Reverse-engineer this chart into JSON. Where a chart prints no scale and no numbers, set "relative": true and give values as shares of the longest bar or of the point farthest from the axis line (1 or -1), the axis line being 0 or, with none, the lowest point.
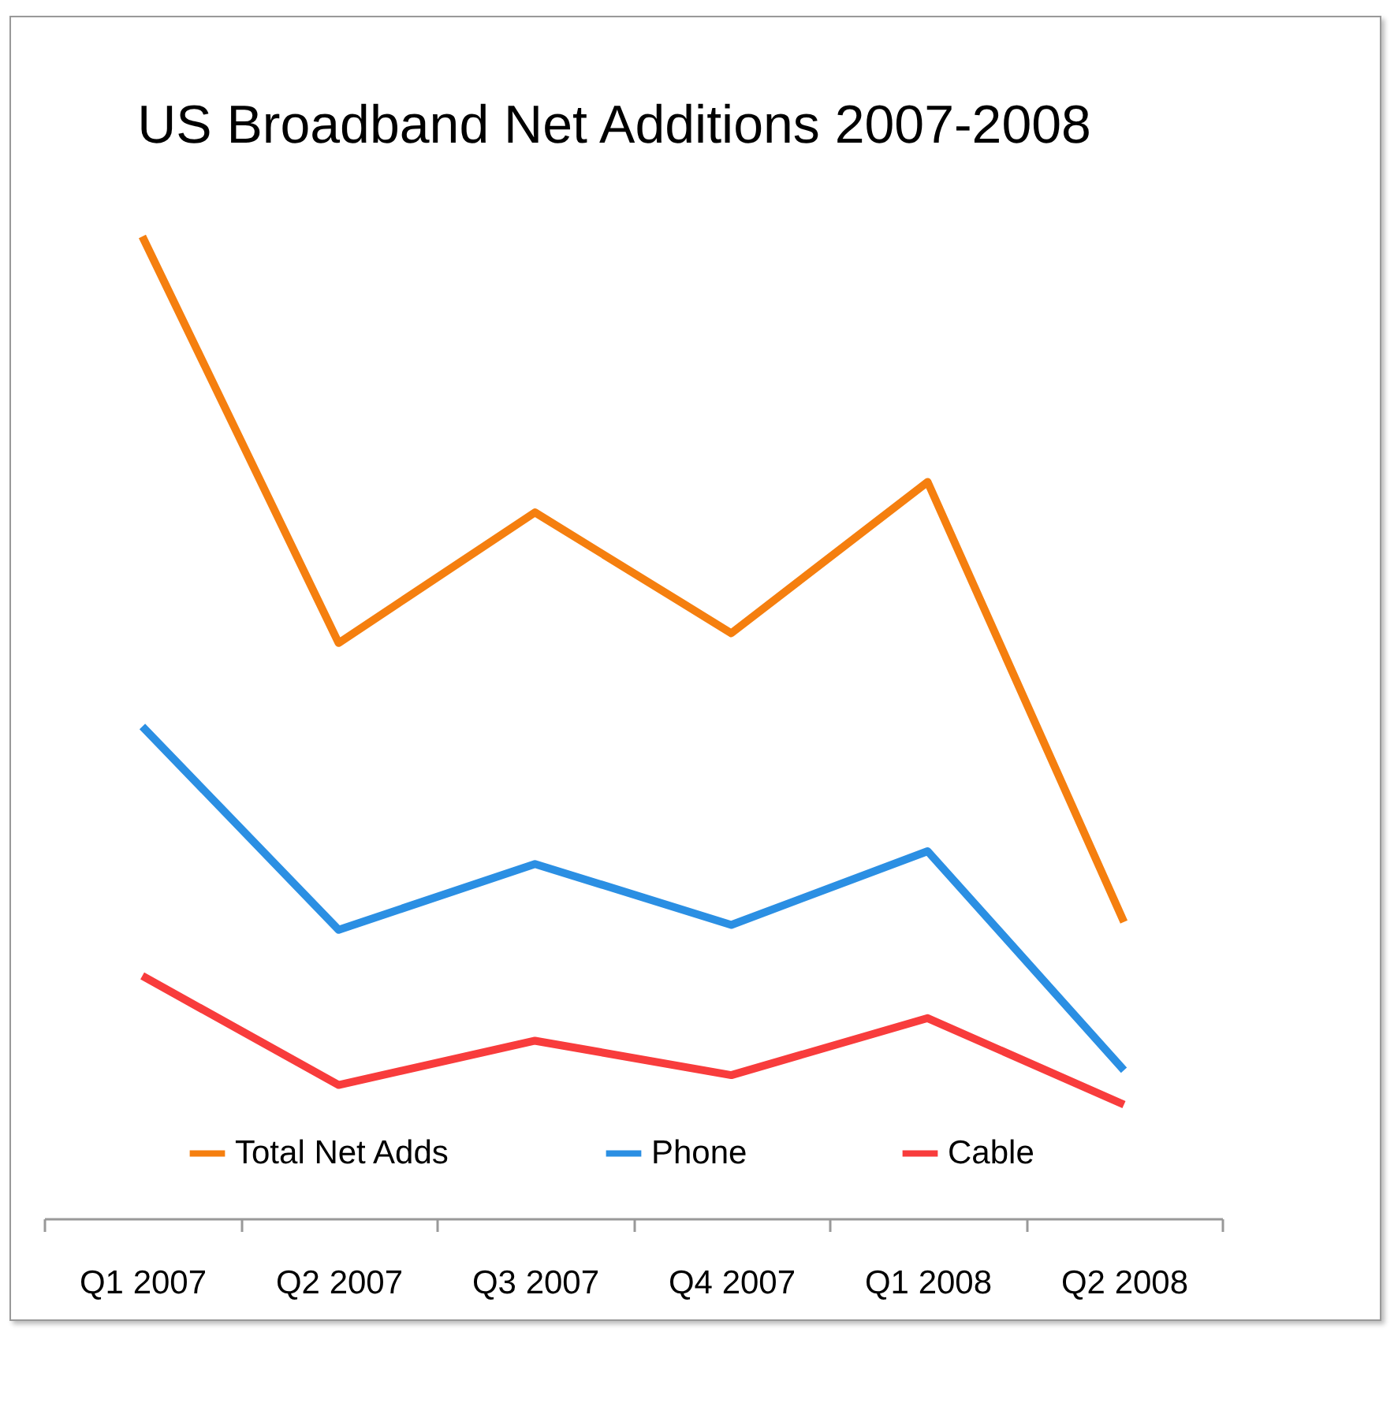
{
  "chart_data": {
    "type": "line",
    "title": "US Broadband Net Additions 2007-2008",
    "relative": true,
    "categories": [
      "Q1 2007",
      "Q2 2007",
      "Q3 2007",
      "Q4 2007",
      "Q1 2008",
      "Q2 2008"
    ],
    "series": [
      {
        "name": "Total Net Adds",
        "color": "#f57f0f",
        "values": [
          1,
          0.586,
          0.719,
          0.596,
          0.75,
          0.302
        ]
      },
      {
        "name": "Phone",
        "color": "#2b8fe3",
        "values": [
          0.501,
          0.294,
          0.361,
          0.299,
          0.374,
          0.151
        ]
      },
      {
        "name": "Cable",
        "color": "#f83c3c",
        "values": [
          0.247,
          0.136,
          0.181,
          0.146,
          0.204,
          0.116
        ]
      }
    ],
    "legend": "bottom",
    "grid": false
  }
}
